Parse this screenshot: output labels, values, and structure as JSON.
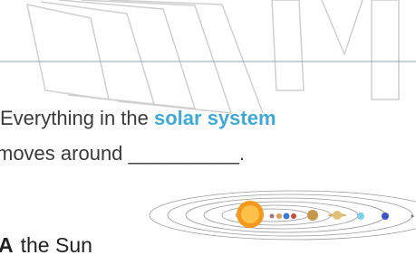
{
  "question": {
    "text_before": "Everything in the",
    "highlight": "solar system",
    "text_after": "moves around",
    "blank": "__________."
  },
  "options": [
    {
      "letter": "A",
      "text": "the Sun"
    }
  ]
}
